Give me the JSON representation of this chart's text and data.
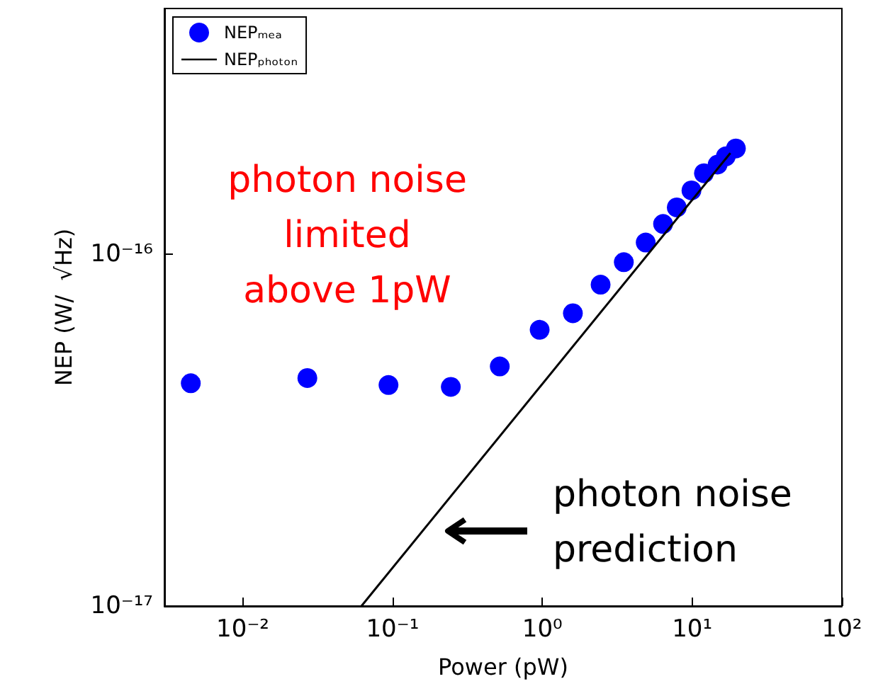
{
  "chart_data": {
    "type": "scatter",
    "xlabel": "Power (pW)",
    "ylabel": "NEP (W/  √Hz)",
    "log": "xy",
    "xlim": [
      0.003,
      100
    ],
    "ylim": [
      1e-17,
      5e-16
    ],
    "xticks": [
      {
        "value": 0.01,
        "label": "10⁻²"
      },
      {
        "value": 0.1,
        "label": "10⁻¹"
      },
      {
        "value": 1,
        "label": "10⁰"
      },
      {
        "value": 10,
        "label": "10¹"
      },
      {
        "value": 100,
        "label": "10²"
      }
    ],
    "yticks": [
      {
        "value": 1e-17,
        "label": "10⁻¹⁷"
      },
      {
        "value": 1e-16,
        "label": "10⁻¹⁶"
      }
    ],
    "legend": "top left",
    "grid": false,
    "marker": "circle",
    "series": [
      {
        "name": "NEPₘₑₐ",
        "color": "#0000ff",
        "x": [
          0.0045,
          0.027,
          0.094,
          0.245,
          0.52,
          0.96,
          1.6,
          2.45,
          3.5,
          4.9,
          6.4,
          7.9,
          9.9,
          12,
          14.8,
          16.8,
          19.6
        ],
        "values": [
          4.3e-17,
          4.45e-17,
          4.25e-17,
          4.2e-17,
          4.8e-17,
          6.1e-17,
          6.8e-17,
          8.2e-17,
          9.5e-17,
          1.08e-16,
          1.22e-16,
          1.36e-16,
          1.52e-16,
          1.7e-16,
          1.8e-16,
          1.9e-16,
          2e-16
        ]
      },
      {
        "name": "NEPₚₕₒₜₒₙ",
        "type": "line",
        "color": "#000000",
        "marker": "none",
        "line_style": "solid",
        "x": [
          0.062,
          18
        ],
        "values": [
          1e-17,
          1.94e-16
        ]
      }
    ],
    "annotations": [
      "photon noise limited above 1pW",
      "photon noise prediction"
    ]
  }
}
